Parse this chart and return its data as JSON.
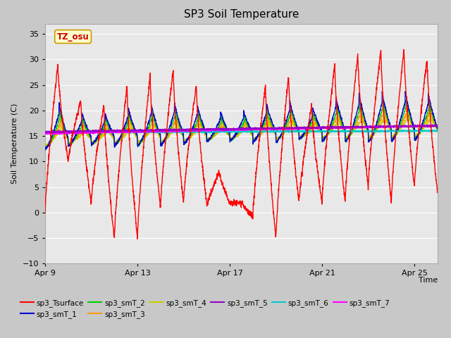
{
  "title": "SP3 Soil Temperature",
  "ylabel": "Soil Temperature (C)",
  "xlabel": "Time",
  "ylim": [
    -10,
    37
  ],
  "yticks": [
    -10,
    -5,
    0,
    5,
    10,
    15,
    20,
    25,
    30,
    35
  ],
  "xtick_labels": [
    "Apr 9",
    "Apr 13",
    "Apr 17",
    "Apr 21",
    "Apr 25"
  ],
  "n_days": 17,
  "series_colors": {
    "sp3_Tsurface": "#ff0000",
    "sp3_smT_1": "#0000cc",
    "sp3_smT_2": "#00cc00",
    "sp3_smT_3": "#ff9900",
    "sp3_smT_4": "#cccc00",
    "sp3_smT_5": "#9900cc",
    "sp3_smT_6": "#00cccc",
    "sp3_smT_7": "#ff00ff"
  },
  "tz_label": "TZ_osu",
  "tz_color": "#cc0000",
  "tz_bg": "#ffffcc",
  "tz_border": "#cc9900",
  "fig_bg": "#c8c8c8",
  "plot_bg": "#e8e8e8",
  "grid_color": "#ffffff"
}
